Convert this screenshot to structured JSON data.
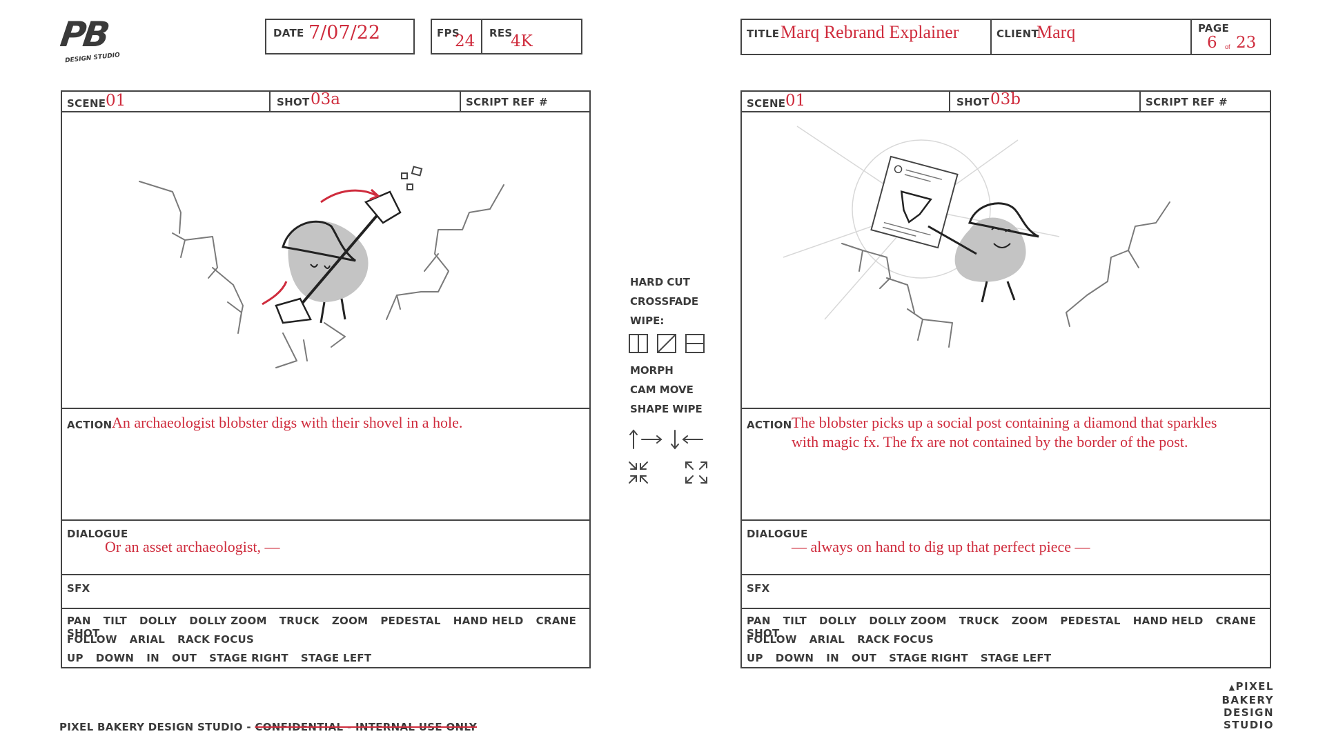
{
  "logo": {
    "mark": "PB",
    "sub": "DESIGN STUDIO"
  },
  "header": {
    "date_label": "DATE",
    "date": "7/07/22",
    "fps_label": "FPS",
    "fps": "24",
    "res_label": "RES",
    "res": "4K",
    "title_label": "TITLE",
    "title": "Marq Rebrand Explainer",
    "client_label": "CLIENT",
    "client": "Marq",
    "page_label": "PAGE",
    "page": "6",
    "page_of": "of",
    "page_total": "23"
  },
  "panels": [
    {
      "scene_label": "SCENE",
      "scene": "01",
      "shot_label": "SHOT",
      "shot": "03a",
      "script_ref_label": "SCRIPT REF #",
      "action_label": "ACTION",
      "action": "An archaeologist blobster digs with their shovel in a hole.",
      "dialogue_label": "DIALOGUE",
      "dialogue": "Or an asset archaeologist, —",
      "sfx_label": "SFX"
    },
    {
      "scene_label": "SCENE",
      "scene": "01",
      "shot_label": "SHOT",
      "shot": "03b",
      "script_ref_label": "SCRIPT REF #",
      "action_label": "ACTION",
      "action": "The blobster picks up a social post containing a diamond that sparkles with magic fx. The fx are not contained by the border of the post.",
      "dialogue_label": "DIALOGUE",
      "dialogue": "— always on hand to dig up that perfect piece —",
      "sfx_label": "SFX"
    }
  ],
  "camera_moves": {
    "line1": [
      "PAN",
      "TILT",
      "DOLLY",
      "DOLLY ZOOM",
      "TRUCK",
      "ZOOM",
      "PEDESTAL",
      "HAND HELD",
      "CRANE SHOT"
    ],
    "line2": [
      "FOLLOW",
      "ARIAL",
      "RACK FOCUS"
    ],
    "line3": [
      "UP",
      "DOWN",
      "IN",
      "OUT",
      "STAGE RIGHT",
      "STAGE LEFT"
    ]
  },
  "transitions": {
    "hard_cut": "HARD CUT",
    "crossfade": "CROSSFADE",
    "wipe": "WIPE:",
    "morph": "MORPH",
    "cam_move": "CAM MOVE",
    "shape_wipe": "SHAPE WIPE"
  },
  "footer": {
    "studio": "PIXEL BAKERY DESIGN STUDIO - ",
    "confidential": "CONFIDENTIAL - INTERNAL USE ONLY",
    "logo_lines": [
      "PIXEL",
      "BAKERY",
      "DESIGN",
      "STUDIO"
    ]
  },
  "colors": {
    "accent": "#cf2c3d",
    "line": "#444444",
    "blob": "#c4c4c4"
  }
}
